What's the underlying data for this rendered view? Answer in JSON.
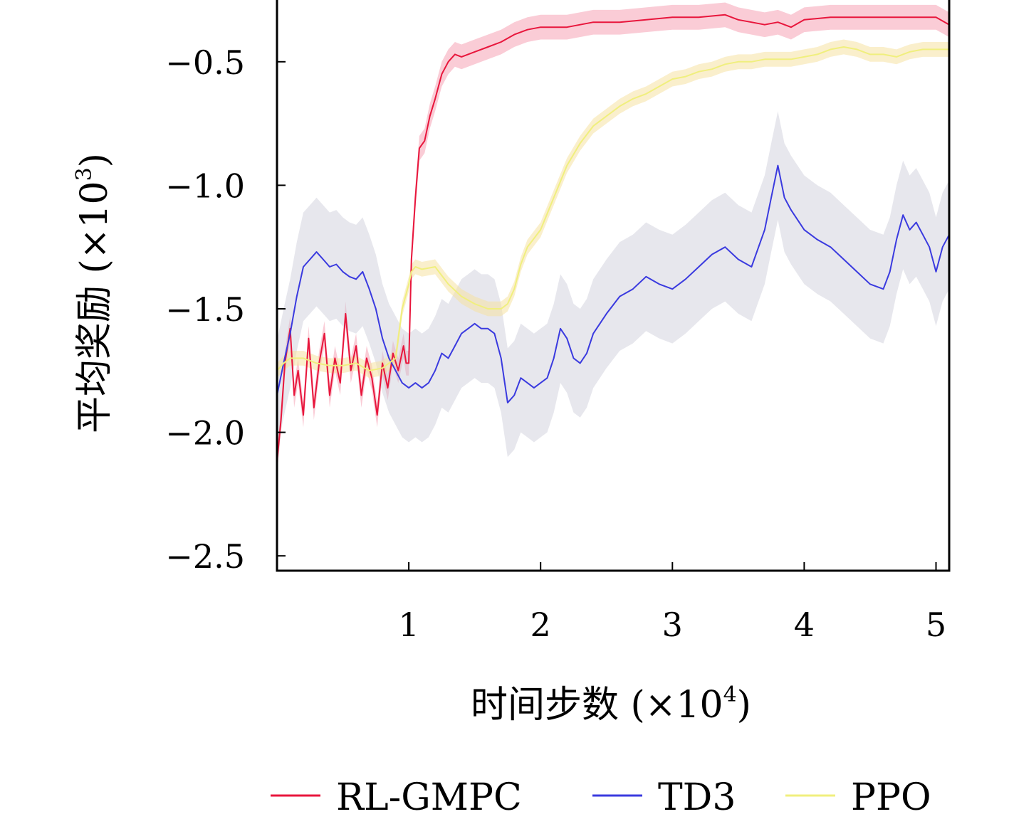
{
  "chart_data": {
    "type": "line",
    "title": "",
    "xlabel": "时间步数 (×10",
    "xlabel_sup": "4",
    "xlabel_close": ")",
    "ylabel": "平均奖励 (×10",
    "ylabel_sup": "3",
    "ylabel_close": ")",
    "xlim": [
      0,
      5.1
    ],
    "ylim": [
      -2.56,
      -0.25
    ],
    "xticks": [
      1,
      2,
      3,
      4,
      5
    ],
    "xtick_labels": [
      "1",
      "2",
      "3",
      "4",
      "5"
    ],
    "yticks": [
      -2.5,
      -2.0,
      -1.5,
      -1.0,
      -0.5
    ],
    "ytick_labels": [
      "−2.5",
      "−2.0",
      "−1.5",
      "−1.0",
      "−0.5"
    ],
    "grid": false,
    "legend_position": "bottom",
    "series": [
      {
        "name": "RL-GMPC",
        "color": "#e8163c",
        "band_color": "#f5a3b5",
        "x": [
          0,
          0.03,
          0.06,
          0.1,
          0.13,
          0.16,
          0.2,
          0.24,
          0.28,
          0.32,
          0.36,
          0.4,
          0.44,
          0.48,
          0.52,
          0.56,
          0.6,
          0.64,
          0.68,
          0.72,
          0.76,
          0.8,
          0.84,
          0.88,
          0.92,
          0.96,
          0.98,
          1.0,
          1.02,
          1.05,
          1.08,
          1.12,
          1.16,
          1.2,
          1.25,
          1.3,
          1.35,
          1.4,
          1.5,
          1.6,
          1.7,
          1.8,
          1.9,
          2.0,
          2.2,
          2.4,
          2.6,
          2.8,
          3.0,
          3.2,
          3.4,
          3.5,
          3.6,
          3.7,
          3.8,
          3.9,
          4.0,
          4.2,
          4.4,
          4.6,
          4.8,
          5.0,
          5.1
        ],
        "y": [
          -2.12,
          -1.95,
          -1.72,
          -1.58,
          -1.85,
          -1.75,
          -1.93,
          -1.62,
          -1.9,
          -1.72,
          -1.6,
          -1.85,
          -1.7,
          -1.8,
          -1.52,
          -1.75,
          -1.65,
          -1.85,
          -1.7,
          -1.78,
          -1.93,
          -1.72,
          -1.82,
          -1.68,
          -1.75,
          -1.65,
          -1.72,
          -1.72,
          -1.3,
          -1.05,
          -0.85,
          -0.82,
          -0.72,
          -0.65,
          -0.55,
          -0.5,
          -0.47,
          -0.48,
          -0.46,
          -0.44,
          -0.42,
          -0.39,
          -0.37,
          -0.36,
          -0.36,
          -0.34,
          -0.34,
          -0.33,
          -0.32,
          -0.32,
          -0.31,
          -0.33,
          -0.34,
          -0.35,
          -0.34,
          -0.36,
          -0.33,
          -0.32,
          -0.32,
          -0.32,
          -0.32,
          -0.32,
          -0.35
        ],
        "band": 0.05
      },
      {
        "name": "TD3",
        "color": "#3a3adf",
        "band_color": "#c9c9d6",
        "x": [
          0,
          0.05,
          0.1,
          0.15,
          0.2,
          0.25,
          0.3,
          0.35,
          0.4,
          0.45,
          0.5,
          0.55,
          0.6,
          0.65,
          0.7,
          0.75,
          0.8,
          0.85,
          0.9,
          0.95,
          1.0,
          1.05,
          1.1,
          1.15,
          1.2,
          1.25,
          1.3,
          1.35,
          1.4,
          1.45,
          1.5,
          1.55,
          1.6,
          1.65,
          1.7,
          1.75,
          1.8,
          1.85,
          1.9,
          1.95,
          2.0,
          2.05,
          2.1,
          2.15,
          2.2,
          2.25,
          2.3,
          2.35,
          2.4,
          2.5,
          2.6,
          2.7,
          2.8,
          2.9,
          3.0,
          3.1,
          3.2,
          3.3,
          3.4,
          3.5,
          3.6,
          3.7,
          3.75,
          3.8,
          3.85,
          3.9,
          4.0,
          4.1,
          4.2,
          4.3,
          4.4,
          4.5,
          4.6,
          4.65,
          4.7,
          4.75,
          4.8,
          4.85,
          4.9,
          4.95,
          5.0,
          5.05,
          5.1
        ],
        "y": [
          -1.85,
          -1.72,
          -1.6,
          -1.45,
          -1.33,
          -1.3,
          -1.27,
          -1.3,
          -1.33,
          -1.32,
          -1.35,
          -1.37,
          -1.38,
          -1.35,
          -1.42,
          -1.5,
          -1.62,
          -1.7,
          -1.75,
          -1.8,
          -1.82,
          -1.8,
          -1.82,
          -1.8,
          -1.75,
          -1.68,
          -1.7,
          -1.65,
          -1.6,
          -1.58,
          -1.56,
          -1.58,
          -1.58,
          -1.6,
          -1.7,
          -1.88,
          -1.85,
          -1.78,
          -1.8,
          -1.82,
          -1.8,
          -1.78,
          -1.7,
          -1.58,
          -1.62,
          -1.7,
          -1.72,
          -1.68,
          -1.6,
          -1.52,
          -1.45,
          -1.42,
          -1.37,
          -1.4,
          -1.42,
          -1.38,
          -1.33,
          -1.28,
          -1.25,
          -1.3,
          -1.33,
          -1.18,
          -1.05,
          -0.92,
          -1.05,
          -1.1,
          -1.18,
          -1.22,
          -1.25,
          -1.3,
          -1.35,
          -1.4,
          -1.42,
          -1.35,
          -1.22,
          -1.12,
          -1.18,
          -1.15,
          -1.2,
          -1.25,
          -1.35,
          -1.25,
          -1.2
        ],
        "band": 0.22
      },
      {
        "name": "PPO",
        "color": "#f0ef7e",
        "band_color": "#f6e2a3",
        "x": [
          0,
          0.05,
          0.1,
          0.2,
          0.3,
          0.4,
          0.5,
          0.6,
          0.7,
          0.8,
          0.9,
          0.95,
          1.0,
          1.02,
          1.05,
          1.1,
          1.2,
          1.3,
          1.4,
          1.5,
          1.6,
          1.7,
          1.75,
          1.8,
          1.85,
          1.9,
          2.0,
          2.1,
          2.2,
          2.3,
          2.4,
          2.5,
          2.6,
          2.7,
          2.8,
          2.9,
          3.0,
          3.1,
          3.2,
          3.3,
          3.4,
          3.5,
          3.6,
          3.7,
          3.8,
          3.9,
          4.0,
          4.1,
          4.2,
          4.3,
          4.4,
          4.5,
          4.6,
          4.7,
          4.8,
          4.9,
          5.0,
          5.1
        ],
        "y": [
          -1.75,
          -1.72,
          -1.7,
          -1.7,
          -1.72,
          -1.73,
          -1.73,
          -1.72,
          -1.75,
          -1.74,
          -1.7,
          -1.5,
          -1.4,
          -1.35,
          -1.33,
          -1.34,
          -1.33,
          -1.4,
          -1.45,
          -1.48,
          -1.5,
          -1.5,
          -1.48,
          -1.42,
          -1.32,
          -1.25,
          -1.18,
          -1.05,
          -0.92,
          -0.83,
          -0.76,
          -0.72,
          -0.68,
          -0.65,
          -0.63,
          -0.6,
          -0.57,
          -0.56,
          -0.54,
          -0.53,
          -0.51,
          -0.5,
          -0.5,
          -0.49,
          -0.49,
          -0.49,
          -0.48,
          -0.47,
          -0.45,
          -0.44,
          -0.45,
          -0.47,
          -0.47,
          -0.48,
          -0.46,
          -0.45,
          -0.45,
          -0.45
        ],
        "band": 0.03
      }
    ]
  }
}
